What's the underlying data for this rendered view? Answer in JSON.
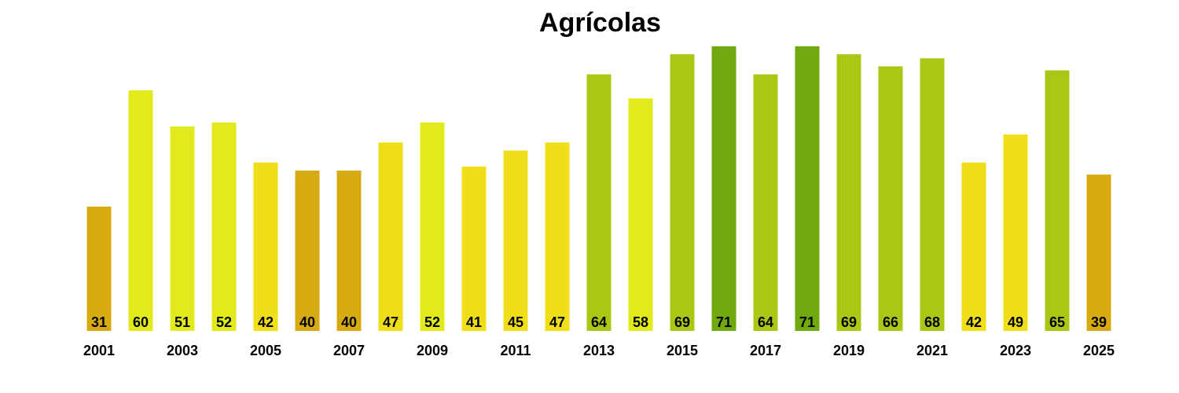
{
  "chart_data": {
    "type": "bar",
    "title": "Agrícolas",
    "xlabel": "",
    "ylabel": "",
    "grid": false,
    "categories": [
      "2001",
      "2002",
      "2003",
      "2004",
      "2005",
      "2006",
      "2007",
      "2008",
      "2009",
      "2010",
      "2011",
      "2012",
      "2013",
      "2014",
      "2015",
      "2016",
      "2017",
      "2018",
      "2019",
      "2020",
      "2021",
      "2022",
      "2023",
      "2024",
      "2025"
    ],
    "tick_labels": [
      "2001",
      "",
      "2003",
      "",
      "2005",
      "",
      "2007",
      "",
      "2009",
      "",
      "2011",
      "",
      "2013",
      "",
      "2015",
      "",
      "2017",
      "",
      "2019",
      "",
      "2021",
      "",
      "2023",
      "",
      "2025"
    ],
    "values": [
      31,
      60,
      51,
      52,
      42,
      40,
      40,
      47,
      52,
      41,
      45,
      47,
      64,
      58,
      69,
      71,
      64,
      71,
      69,
      66,
      68,
      42,
      49,
      65,
      39
    ],
    "colors": [
      "#D6AA10",
      "#E1EB1B",
      "#E1EB1B",
      "#E1EB1B",
      "#F0DE18",
      "#D6AA10",
      "#D6AA10",
      "#F0DE18",
      "#E1EB1B",
      "#F0DE18",
      "#F0DE18",
      "#F0DE18",
      "#A9C815",
      "#E1EB1B",
      "#A9C815",
      "#6FA90E",
      "#A9C815",
      "#6FA90E",
      "#A9C815",
      "#A9C815",
      "#A9C815",
      "#F0DE18",
      "#F0DE18",
      "#A9C815",
      "#D6AA10"
    ]
  }
}
